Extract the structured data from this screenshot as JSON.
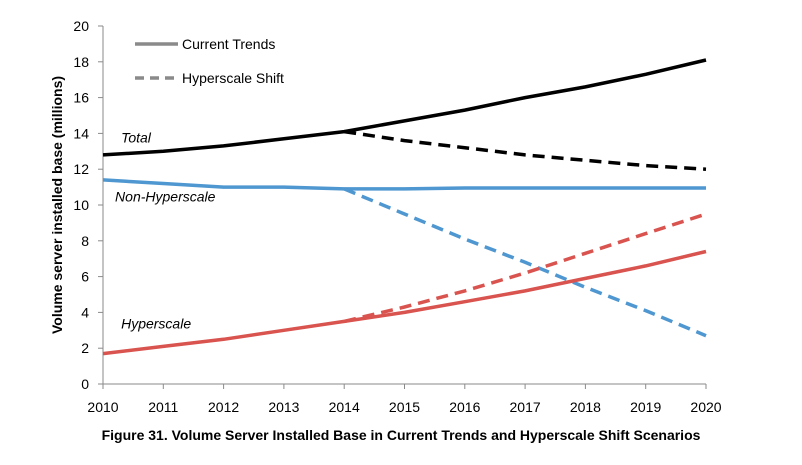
{
  "caption": "Figure 31. Volume Server Installed Base in Current Trends and Hyperscale Shift Scenarios",
  "chart_data": {
    "type": "line",
    "title": "",
    "xlabel": "",
    "ylabel": "Volume server installed base (millions)",
    "xlim": [
      2010,
      2020
    ],
    "ylim": [
      0,
      20
    ],
    "y_ticks": [
      0,
      2,
      4,
      6,
      8,
      10,
      12,
      14,
      16,
      18,
      20
    ],
    "x_ticks": [
      2010,
      2011,
      2012,
      2013,
      2014,
      2015,
      2016,
      2017,
      2018,
      2019,
      2020
    ],
    "grid": false,
    "legend": {
      "placement": "top-left",
      "entries": [
        {
          "label": "Current Trends",
          "style": "solid"
        },
        {
          "label": "Hyperscale Shift",
          "style": "dashed"
        }
      ]
    },
    "series": [
      {
        "label": "Total",
        "scenario": "Current Trends",
        "color": "#000000",
        "style": "solid",
        "x": [
          2010,
          2011,
          2012,
          2013,
          2014,
          2015,
          2016,
          2017,
          2018,
          2019,
          2020
        ],
        "y": [
          12.8,
          13.0,
          13.3,
          13.7,
          14.1,
          14.7,
          15.3,
          16.0,
          16.6,
          17.3,
          18.1
        ]
      },
      {
        "label": "Total",
        "scenario": "Hyperscale Shift",
        "color": "#000000",
        "style": "dashed",
        "x": [
          2014,
          2015,
          2016,
          2017,
          2018,
          2019,
          2020
        ],
        "y": [
          14.1,
          13.6,
          13.2,
          12.8,
          12.5,
          12.2,
          12.0
        ]
      },
      {
        "label": "Non-Hyperscale",
        "scenario": "Current Trends",
        "color": "#4f97d0",
        "style": "solid",
        "x": [
          2010,
          2011,
          2012,
          2013,
          2014,
          2015,
          2016,
          2017,
          2018,
          2019,
          2020
        ],
        "y": [
          11.4,
          11.2,
          11.0,
          11.0,
          10.9,
          10.9,
          10.95,
          10.95,
          10.95,
          10.95,
          10.95
        ]
      },
      {
        "label": "Non-Hyperscale",
        "scenario": "Hyperscale Shift",
        "color": "#4f97d0",
        "style": "dashed",
        "x": [
          2014,
          2015,
          2016,
          2017,
          2018,
          2019,
          2020
        ],
        "y": [
          10.9,
          9.5,
          8.1,
          6.8,
          5.4,
          4.1,
          2.7
        ]
      },
      {
        "label": "Hyperscale",
        "scenario": "Current Trends",
        "color": "#d9534f",
        "style": "solid",
        "x": [
          2010,
          2011,
          2012,
          2013,
          2014,
          2015,
          2016,
          2017,
          2018,
          2019,
          2020
        ],
        "y": [
          1.7,
          2.1,
          2.5,
          3.0,
          3.5,
          4.0,
          4.6,
          5.2,
          5.9,
          6.6,
          7.4
        ]
      },
      {
        "label": "Hyperscale",
        "scenario": "Hyperscale Shift",
        "color": "#d9534f",
        "style": "dashed",
        "x": [
          2014,
          2015,
          2016,
          2017,
          2018,
          2019,
          2020
        ],
        "y": [
          3.5,
          4.3,
          5.2,
          6.2,
          7.3,
          8.4,
          9.5
        ]
      }
    ],
    "series_labels": [
      {
        "text": "Total",
        "x": 2010.3,
        "y": 13.5
      },
      {
        "text": "Non-Hyperscale",
        "x": 2010.2,
        "y": 10.2
      },
      {
        "text": "Hyperscale",
        "x": 2010.3,
        "y": 3.1
      }
    ]
  }
}
